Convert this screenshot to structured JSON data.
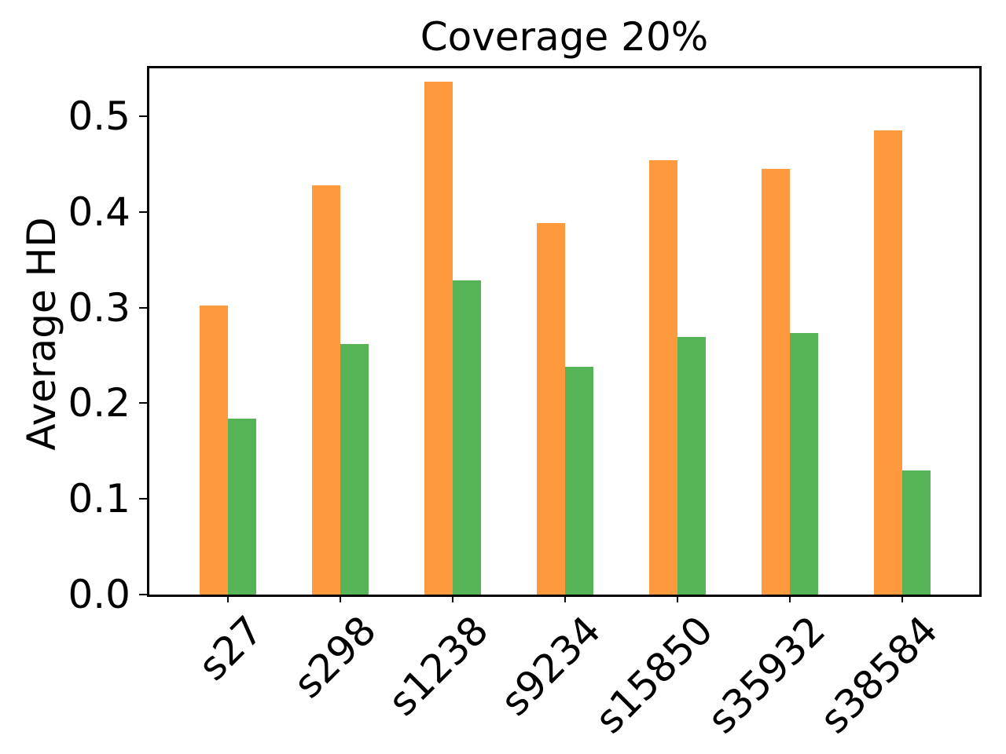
{
  "figure": {
    "title": "Coverage 20%",
    "ylabel": "Average HD"
  },
  "chart_data": {
    "type": "bar",
    "title": "Coverage 20%",
    "xlabel": "",
    "ylabel": "Average HD",
    "categories": [
      "s27",
      "s298",
      "s1238",
      "s9234",
      "s15850",
      "s35932",
      "s38584"
    ],
    "series": [
      {
        "name": "orange",
        "color": "#fe993d",
        "values": [
          0.302,
          0.428,
          0.536,
          0.388,
          0.454,
          0.445,
          0.485
        ]
      },
      {
        "name": "green",
        "color": "#56b356",
        "values": [
          0.184,
          0.262,
          0.328,
          0.238,
          0.269,
          0.273,
          0.13
        ]
      }
    ],
    "ylim": [
      0,
      0.55
    ],
    "ytick_labels": [
      "0.0",
      "0.1",
      "0.2",
      "0.3",
      "0.4",
      "0.5"
    ],
    "ytick_values": [
      0.0,
      0.1,
      0.2,
      0.3,
      0.4,
      0.5
    ],
    "xtick_rotation": 45,
    "grid": false,
    "legend_position": "none"
  }
}
